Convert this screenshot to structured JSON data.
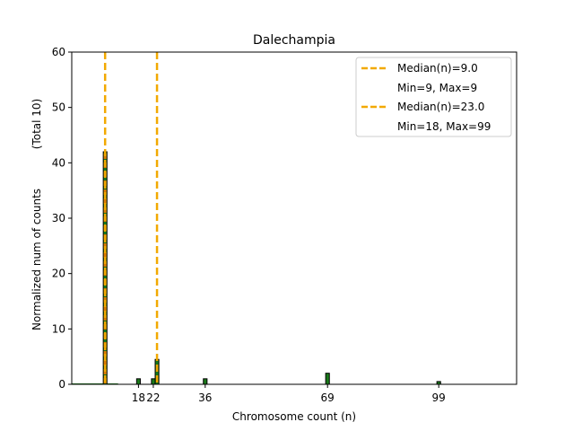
{
  "chart_data": {
    "type": "bar",
    "title": "Dalechampia",
    "xlabel": "Chromosome count (n)",
    "ylabel": "Normalized num of counts",
    "ylabel_suffix": "(Total 10)",
    "xlim": [
      0,
      120
    ],
    "ylim": [
      0,
      60
    ],
    "y_ticks": [
      0,
      10,
      20,
      30,
      40,
      50,
      60
    ],
    "x_ticks": [
      18,
      22,
      36,
      69,
      99
    ],
    "x_tick_labels": [
      "18",
      "22",
      "36",
      "69",
      "99"
    ],
    "grid": false,
    "bars": [
      {
        "x": 9,
        "value": 42.0
      },
      {
        "x": 18,
        "value": 1.0
      },
      {
        "x": 22,
        "value": 1.0
      },
      {
        "x": 23,
        "value": 4.5
      },
      {
        "x": 36,
        "value": 1.0
      },
      {
        "x": 69,
        "value": 2.0
      },
      {
        "x": 99,
        "value": 0.5
      }
    ],
    "medians": [
      {
        "x": 9.0,
        "label": "Median(n)=9.0",
        "range_label": "Min=9, Max=9",
        "color": "#f2a900"
      },
      {
        "x": 23.0,
        "label": "Median(n)=23.0",
        "range_label": "Min=18, Max=99",
        "color": "#f2a900"
      }
    ],
    "colors": {
      "bar_fill": "#1a7a1a",
      "bar_edge": "#000000",
      "median": "#f2a900",
      "overlay": "#e07b00"
    },
    "legend_position": "top-right"
  }
}
